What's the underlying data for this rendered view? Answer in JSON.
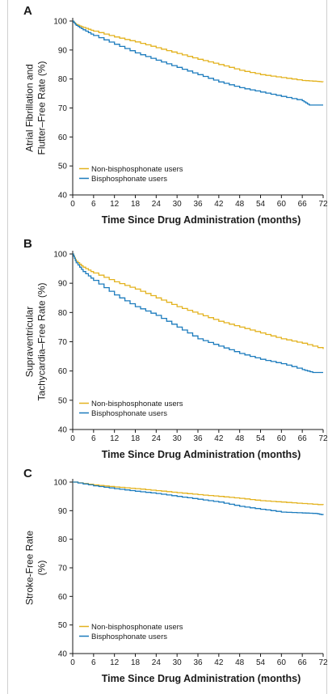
{
  "colors": {
    "non_bisphosphonate": "#e3b21e",
    "bisphosphonate": "#1b7bbd",
    "axis": "#1a1a1a"
  },
  "chart_data": [
    {
      "panel": "A",
      "type": "line",
      "ylabel": [
        "Atrial Fibrillation and",
        "Flutter–Free Rate (%)"
      ],
      "xlabel": "Time Since Drug Administration (months)",
      "xlim": [
        0,
        72
      ],
      "ylim": [
        40,
        100
      ],
      "xticks": [
        0,
        6,
        12,
        18,
        24,
        30,
        36,
        42,
        48,
        54,
        60,
        66,
        72
      ],
      "yticks": [
        40,
        50,
        60,
        70,
        80,
        90,
        100
      ],
      "legend_position": "bottom-left",
      "series": [
        {
          "name": "Non-bisphosphonate users",
          "color_key": "non_bisphosphonate",
          "x": [
            0,
            1,
            3,
            6,
            12,
            18,
            24,
            30,
            36,
            42,
            48,
            54,
            60,
            66,
            70,
            72
          ],
          "y": [
            100,
            98.8,
            97.8,
            96.5,
            94.5,
            92.8,
            90.8,
            88.8,
            86.8,
            85,
            83,
            81.5,
            80.5,
            79.5,
            79.2,
            79
          ]
        },
        {
          "name": "Bisphosphonate users",
          "color_key": "bisphosphonate",
          "x": [
            0,
            1,
            3,
            6,
            12,
            18,
            24,
            30,
            36,
            42,
            48,
            54,
            60,
            66,
            68,
            70,
            72
          ],
          "y": [
            100,
            98.5,
            97,
            95,
            92,
            89,
            86.5,
            84,
            81.5,
            79,
            77,
            75.5,
            74,
            72.5,
            71,
            71,
            71
          ]
        }
      ]
    },
    {
      "panel": "B",
      "type": "line",
      "ylabel": [
        "Supraventricular",
        "Tachycardia–Free Rate (%)"
      ],
      "xlabel": "Time Since Drug Administration (months)",
      "xlim": [
        0,
        72
      ],
      "ylim": [
        40,
        100
      ],
      "xticks": [
        0,
        6,
        12,
        18,
        24,
        30,
        36,
        42,
        48,
        54,
        60,
        66,
        72
      ],
      "yticks": [
        40,
        50,
        60,
        70,
        80,
        90,
        100
      ],
      "legend_position": "bottom-left",
      "series": [
        {
          "name": "Non-bisphosphonate users",
          "color_key": "non_bisphosphonate",
          "x": [
            0,
            1,
            3,
            6,
            12,
            18,
            24,
            30,
            36,
            42,
            48,
            54,
            60,
            66,
            72
          ],
          "y": [
            100,
            97.5,
            95.5,
            93.5,
            90.5,
            88,
            85,
            82,
            79.5,
            77,
            75,
            73,
            71,
            69.5,
            67.5
          ]
        },
        {
          "name": "Bisphosphonate users",
          "color_key": "bisphosphonate",
          "x": [
            0,
            1,
            3,
            6,
            12,
            18,
            24,
            30,
            36,
            42,
            48,
            54,
            60,
            66,
            69,
            72
          ],
          "y": [
            100,
            97,
            94,
            91,
            86,
            82,
            79,
            75,
            71,
            68.5,
            66,
            64,
            62.5,
            60.5,
            59.5,
            59.5
          ]
        }
      ]
    },
    {
      "panel": "C",
      "type": "line",
      "ylabel": [
        "Stroke-Free Rate",
        "(%)"
      ],
      "xlabel": "Time Since Drug Administration (months)",
      "xlim": [
        0,
        72
      ],
      "ylim": [
        40,
        100
      ],
      "xticks": [
        0,
        6,
        12,
        18,
        24,
        30,
        36,
        42,
        48,
        54,
        60,
        66,
        72
      ],
      "yticks": [
        40,
        50,
        60,
        70,
        80,
        90,
        100
      ],
      "legend_position": "bottom-left",
      "series": [
        {
          "name": "Non-bisphosphonate users",
          "color_key": "non_bisphosphonate",
          "x": [
            0,
            6,
            12,
            18,
            24,
            30,
            36,
            42,
            48,
            54,
            60,
            66,
            72
          ],
          "y": [
            100,
            99,
            98.3,
            97.7,
            97,
            96.3,
            95.6,
            95,
            94.3,
            93.5,
            93,
            92.5,
            92
          ]
        },
        {
          "name": "Bisphosphonate users",
          "color_key": "bisphosphonate",
          "x": [
            0,
            6,
            12,
            18,
            24,
            30,
            36,
            42,
            48,
            54,
            60,
            66,
            70,
            72
          ],
          "y": [
            100,
            98.7,
            97.7,
            96.8,
            96,
            95,
            94,
            93,
            91.5,
            90.5,
            89.5,
            89.2,
            89,
            88.5
          ]
        }
      ]
    }
  ]
}
